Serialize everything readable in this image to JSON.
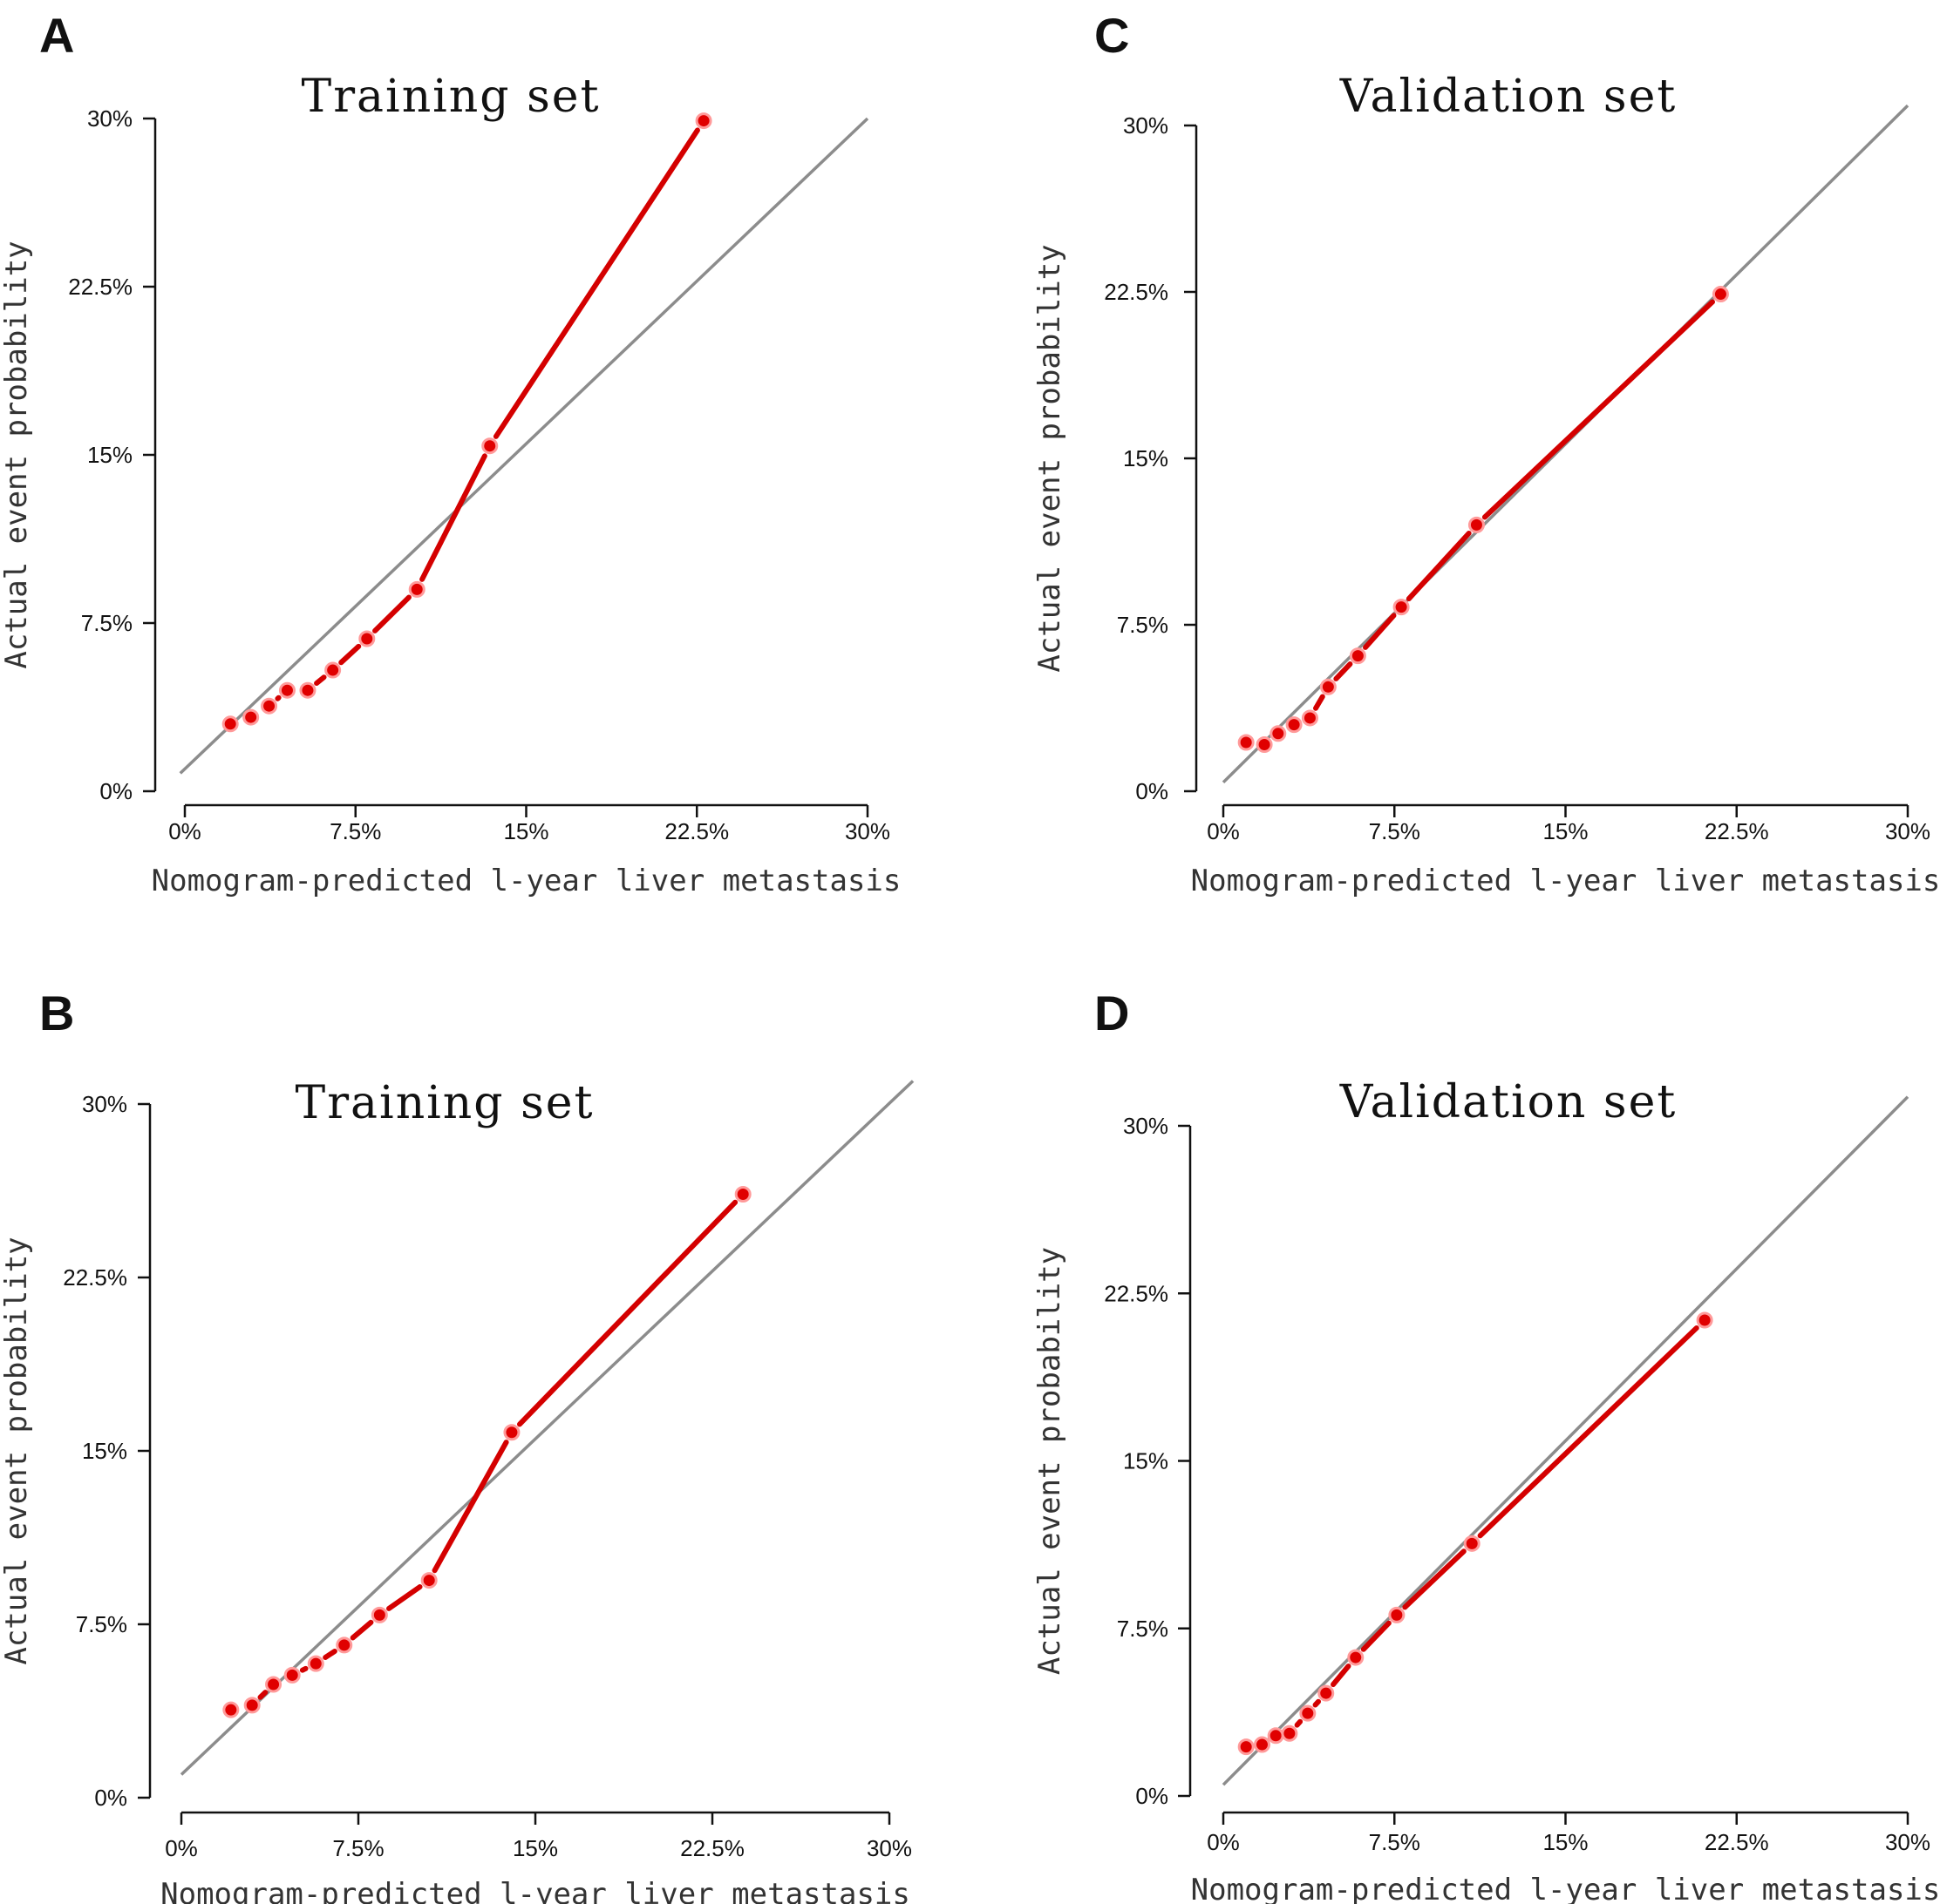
{
  "chart_data": [
    {
      "panel": "A",
      "type": "line",
      "title": "Training set",
      "xlabel": "Nomogram-predicted l-year liver metastasis",
      "ylabel": "Actual event probability",
      "xlim": [
        0,
        30
      ],
      "ylim": [
        0,
        30
      ],
      "x_ticks": [
        "0%",
        "7.5%",
        "15%",
        "22.5%",
        "30%"
      ],
      "y_ticks": [
        "0%",
        "7.5%",
        "15%",
        "22.5%",
        "30%"
      ],
      "series": [
        {
          "name": "ideal",
          "x": [
            -0.2,
            30
          ],
          "y": [
            0.8,
            30
          ]
        },
        {
          "name": "calibration",
          "x": [
            2.0,
            2.9,
            3.7,
            4.5,
            5.4,
            6.5,
            8.0,
            10.2,
            13.4,
            22.8
          ],
          "y": [
            3.0,
            3.3,
            3.8,
            4.5,
            4.5,
            5.4,
            6.8,
            9.0,
            15.4,
            29.9
          ]
        }
      ]
    },
    {
      "panel": "B",
      "type": "line",
      "title": "Training set",
      "xlabel": "Nomogram-predicted l-year liver metastasis",
      "ylabel": "Actual event probability",
      "xlim": [
        0,
        30
      ],
      "ylim": [
        0,
        30
      ],
      "x_ticks": [
        "0%",
        "7.5%",
        "15%",
        "22.5%",
        "30%"
      ],
      "y_ticks": [
        "0%",
        "7.5%",
        "15%",
        "22.5%",
        "30%"
      ],
      "series": [
        {
          "name": "ideal",
          "x": [
            0,
            31
          ],
          "y": [
            1.0,
            31
          ]
        },
        {
          "name": "calibration",
          "x": [
            2.1,
            3.0,
            3.9,
            4.7,
            5.7,
            6.9,
            8.4,
            10.5,
            14.0,
            23.8
          ],
          "y": [
            3.8,
            4.0,
            4.9,
            5.3,
            5.8,
            6.6,
            7.9,
            9.4,
            15.8,
            26.1
          ]
        }
      ]
    },
    {
      "panel": "C",
      "type": "line",
      "title": "Validation set",
      "xlabel": "Nomogram-predicted l-year liver metastasis",
      "ylabel": "Actual event probability",
      "xlim": [
        0,
        30
      ],
      "ylim": [
        0,
        30
      ],
      "x_ticks": [
        "0%",
        "7.5%",
        "15%",
        "22.5%",
        "30%"
      ],
      "y_ticks": [
        "0%",
        "7.5%",
        "15%",
        "22.5%",
        "30%"
      ],
      "series": [
        {
          "name": "ideal",
          "x": [
            0,
            30
          ],
          "y": [
            0.4,
            30.9
          ]
        },
        {
          "name": "calibration",
          "x": [
            1.0,
            1.8,
            2.4,
            3.1,
            3.8,
            4.6,
            5.9,
            7.8,
            11.1,
            21.8
          ],
          "y": [
            2.2,
            2.1,
            2.6,
            3.0,
            3.3,
            4.7,
            6.1,
            8.3,
            12.0,
            22.4
          ]
        }
      ]
    },
    {
      "panel": "D",
      "type": "line",
      "title": "Validation set",
      "xlabel": "Nomogram-predicted l-year liver metastasis",
      "ylabel": "Actual event probability",
      "xlim": [
        0,
        30
      ],
      "ylim": [
        0,
        30
      ],
      "x_ticks": [
        "0%",
        "7.5%",
        "15%",
        "22.5%",
        "30%"
      ],
      "y_ticks": [
        "0%",
        "7.5%",
        "15%",
        "22.5%",
        "30%"
      ],
      "series": [
        {
          "name": "ideal",
          "x": [
            0,
            30
          ],
          "y": [
            0.5,
            31.3
          ]
        },
        {
          "name": "calibration",
          "x": [
            1.0,
            1.7,
            2.3,
            2.9,
            3.7,
            4.5,
            5.8,
            7.6,
            10.9,
            21.1
          ],
          "y": [
            2.2,
            2.3,
            2.7,
            2.8,
            3.7,
            4.6,
            6.2,
            8.1,
            11.3,
            21.3
          ]
        }
      ]
    }
  ]
}
